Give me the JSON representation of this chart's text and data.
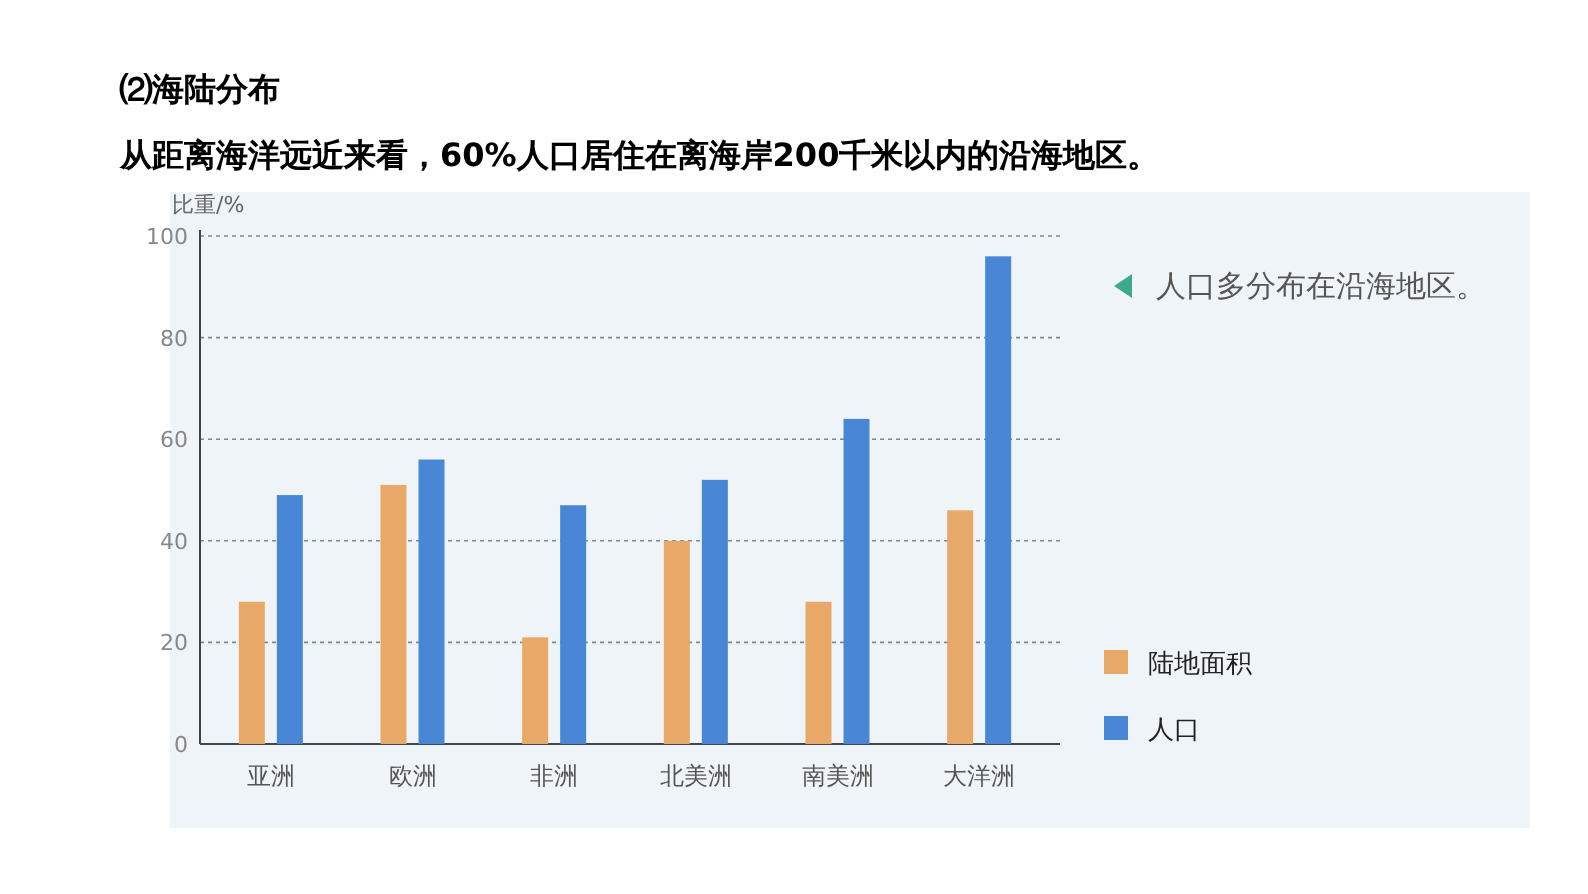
{
  "chart_data": {
    "type": "bar",
    "title": "⑵海陆分布",
    "subtitle": "从距离海洋远近来看，60%人口居住在离海岸200千米以内的沿海地区。",
    "ylabel": "比重/%",
    "annotations": [
      "人口多分布在沿海地区。"
    ],
    "categories": [
      "亚洲",
      "欧洲",
      "非洲",
      "北美洲",
      "南美洲",
      "大洋洲"
    ],
    "series": [
      {
        "name": "陆地面积",
        "color": "#e8a868",
        "values": [
          28,
          51,
          21,
          40,
          28,
          46
        ]
      },
      {
        "name": "人口",
        "color": "#4a86d6",
        "values": [
          49,
          56,
          47,
          52,
          64,
          96
        ]
      }
    ],
    "ylim": [
      0,
      100
    ],
    "yticks": [
      0,
      20,
      40,
      60,
      80,
      100
    ],
    "grid": "y",
    "legend": "right"
  }
}
